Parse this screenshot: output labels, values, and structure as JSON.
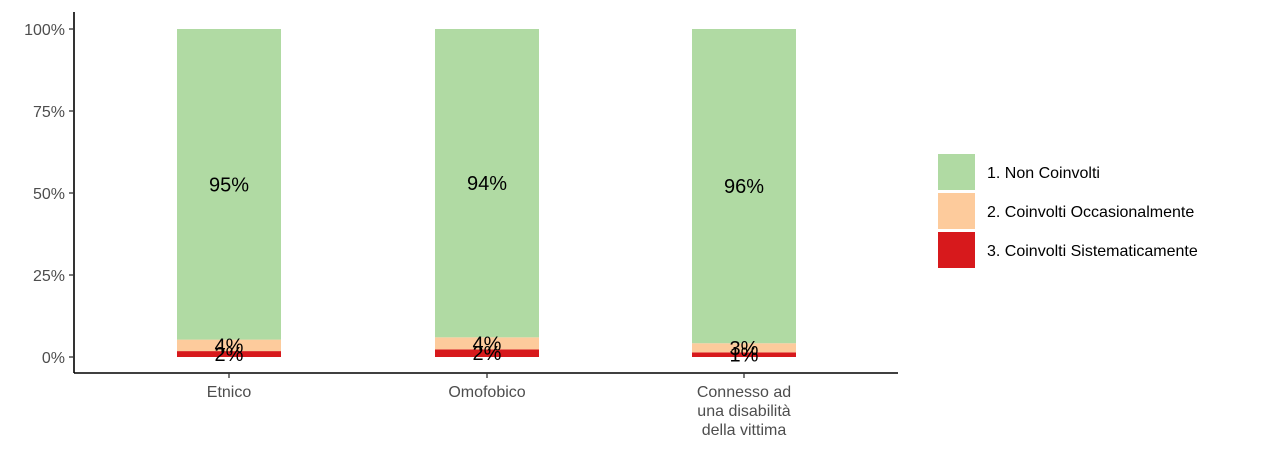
{
  "chart_data": {
    "type": "bar",
    "stacked": true,
    "title": "",
    "xlabel": "",
    "ylabel": "",
    "ylim": [
      0,
      1
    ],
    "y_ticks": [
      {
        "value": 0,
        "label": "0%"
      },
      {
        "value": 0.25,
        "label": "25%"
      },
      {
        "value": 0.5,
        "label": "50%"
      },
      {
        "value": 0.75,
        "label": "75%"
      },
      {
        "value": 1,
        "label": "100%"
      }
    ],
    "categories": [
      {
        "label_lines": [
          "Etnico"
        ]
      },
      {
        "label_lines": [
          "Omofobico"
        ]
      },
      {
        "label_lines": [
          "Connesso ad",
          "una disabilità",
          "della vittima"
        ]
      }
    ],
    "series": [
      {
        "name": "3. Coinvolti Sistematicamente",
        "color": "#D7191C",
        "values": [
          0.018,
          0.023,
          0.014
        ],
        "labels": [
          "2%",
          "2%",
          "1%"
        ]
      },
      {
        "name": "2. Coinvolti Occasionalmente",
        "color": "#FDCB9C",
        "values": [
          0.035,
          0.037,
          0.028
        ],
        "labels": [
          "4%",
          "4%",
          "3%"
        ]
      },
      {
        "name": "1. Non Coinvolti",
        "color": "#B0DAA3",
        "values": [
          0.947,
          0.94,
          0.958
        ],
        "labels": [
          "95%",
          "94%",
          "96%"
        ]
      }
    ],
    "legend": {
      "position": "right",
      "order": [
        "1. Non Coinvolti",
        "2. Coinvolti Occasionalmente",
        "3. Coinvolti Sistematicamente"
      ]
    },
    "grid": false
  }
}
